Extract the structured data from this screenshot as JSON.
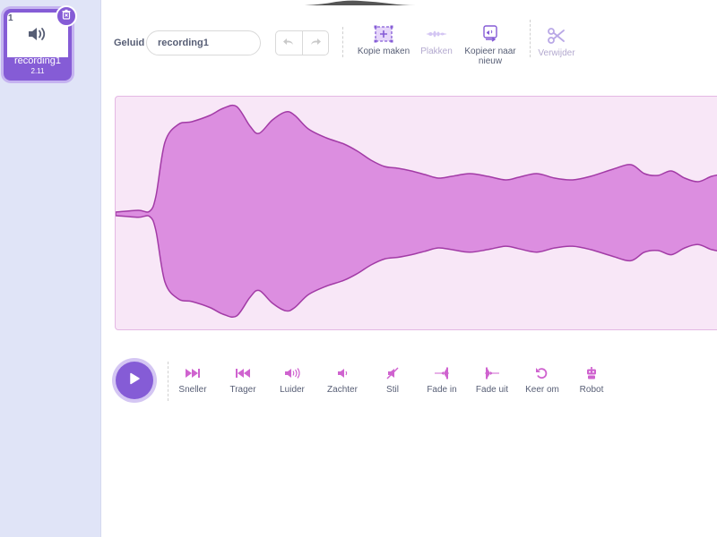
{
  "sidebar": {
    "sounds": [
      {
        "index": "1",
        "name": "recording1",
        "duration": "2.11",
        "selected": true
      }
    ]
  },
  "editor": {
    "name_label": "Geluid",
    "name_value": "recording1",
    "tools": {
      "copy": "Kopie maken",
      "paste": "Plakken",
      "copy_to_new": "Kopieer naar nieuw",
      "delete": "Verwijder"
    }
  },
  "effects": [
    {
      "label": "Sneller",
      "icon": "faster-icon"
    },
    {
      "label": "Trager",
      "icon": "slower-icon"
    },
    {
      "label": "Luider",
      "icon": "louder-icon"
    },
    {
      "label": "Zachter",
      "icon": "softer-icon"
    },
    {
      "label": "Stil",
      "icon": "mute-icon"
    },
    {
      "label": "Fade in",
      "icon": "fade-in-icon"
    },
    {
      "label": "Fade uit",
      "icon": "fade-out-icon"
    },
    {
      "label": "Keer om",
      "icon": "reverse-icon"
    },
    {
      "label": "Robot",
      "icon": "robot-icon"
    }
  ],
  "colors": {
    "accent": "#855cd6",
    "wave_fill": "#dc8ee0",
    "wave_stroke": "#a23ba6",
    "wave_bg": "#f8e7f7",
    "sidebar_bg": "#e0e4f7",
    "text": "#575e75"
  }
}
